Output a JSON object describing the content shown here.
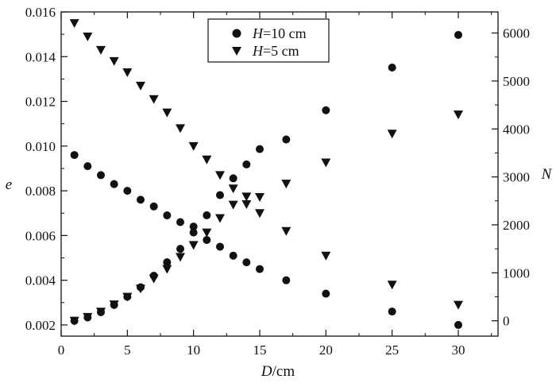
{
  "chart_data": {
    "type": "scatter",
    "x_title": {
      "var": "D",
      "unit": "/cm"
    },
    "y_left_title": "e",
    "y_right_title": "N",
    "x_range": [
      0,
      33
    ],
    "x_ticks": [
      "0",
      "5",
      "10",
      "15",
      "20",
      "25",
      "30"
    ],
    "y_left_range": [
      0.0015,
      0.016
    ],
    "y_left_ticks": [
      "0.002",
      "0.004",
      "0.006",
      "0.008",
      "0.010",
      "0.012",
      "0.014",
      "0.016"
    ],
    "y_right_range": [
      -320,
      6440
    ],
    "y_right_ticks": [
      "0",
      "1000",
      "2000",
      "3000",
      "4000",
      "5000",
      "6000"
    ],
    "legend_position": "top-center",
    "series": [
      {
        "name": "H=10 cm",
        "legend": {
          "var": "H",
          "rest": "=10 cm"
        },
        "marker": "circle",
        "color": "#111111",
        "e": [
          [
            1,
            0.0096
          ],
          [
            2,
            0.0091
          ],
          [
            3,
            0.0087
          ],
          [
            4,
            0.0083
          ],
          [
            5,
            0.008
          ],
          [
            6,
            0.0076
          ],
          [
            7,
            0.0073
          ],
          [
            8,
            0.0069
          ],
          [
            9,
            0.0066
          ],
          [
            10,
            0.0064
          ],
          [
            11,
            0.0058
          ],
          [
            12,
            0.0055
          ],
          [
            13,
            0.0051
          ],
          [
            14,
            0.0048
          ],
          [
            15,
            0.0045
          ],
          [
            17,
            0.004
          ],
          [
            20,
            0.0034
          ],
          [
            25,
            0.0026
          ],
          [
            30,
            0.002
          ]
        ],
        "N": [
          [
            1,
            0
          ],
          [
            2,
            70
          ],
          [
            3,
            180
          ],
          [
            4,
            330
          ],
          [
            5,
            500
          ],
          [
            6,
            700
          ],
          [
            7,
            940
          ],
          [
            8,
            1220
          ],
          [
            9,
            1500
          ],
          [
            10,
            1840
          ],
          [
            11,
            2200
          ],
          [
            12,
            2620
          ],
          [
            13,
            2970
          ],
          [
            14,
            3260
          ],
          [
            15,
            3580
          ],
          [
            17,
            3780
          ],
          [
            20,
            4390
          ],
          [
            25,
            5280
          ],
          [
            30,
            5960
          ]
        ]
      },
      {
        "name": "H=5 cm",
        "legend": {
          "var": "H",
          "rest": "=5 cm"
        },
        "marker": "triangle-down",
        "color": "#111111",
        "e": [
          [
            1,
            0.0155
          ],
          [
            2,
            0.0149
          ],
          [
            3,
            0.0143
          ],
          [
            4,
            0.0138
          ],
          [
            5,
            0.0133
          ],
          [
            6,
            0.0127
          ],
          [
            7,
            0.0121
          ],
          [
            8,
            0.0115
          ],
          [
            9,
            0.0108
          ],
          [
            10,
            0.01
          ],
          [
            11,
            0.0094
          ],
          [
            12,
            0.0087
          ],
          [
            13,
            0.0081
          ],
          [
            14,
            0.0074
          ],
          [
            15,
            0.007
          ],
          [
            17,
            0.0062
          ],
          [
            20,
            0.0051
          ],
          [
            25,
            0.0038
          ],
          [
            30,
            0.0029
          ]
        ],
        "N": [
          [
            1,
            0
          ],
          [
            2,
            80
          ],
          [
            3,
            190
          ],
          [
            4,
            340
          ],
          [
            5,
            500
          ],
          [
            6,
            670
          ],
          [
            7,
            880
          ],
          [
            8,
            1080
          ],
          [
            9,
            1330
          ],
          [
            10,
            1580
          ],
          [
            11,
            1840
          ],
          [
            12,
            2140
          ],
          [
            13,
            2420
          ],
          [
            14,
            2590
          ],
          [
            15,
            2580
          ],
          [
            17,
            2860
          ],
          [
            20,
            3300
          ],
          [
            25,
            3900
          ],
          [
            30,
            4300
          ]
        ]
      }
    ]
  }
}
